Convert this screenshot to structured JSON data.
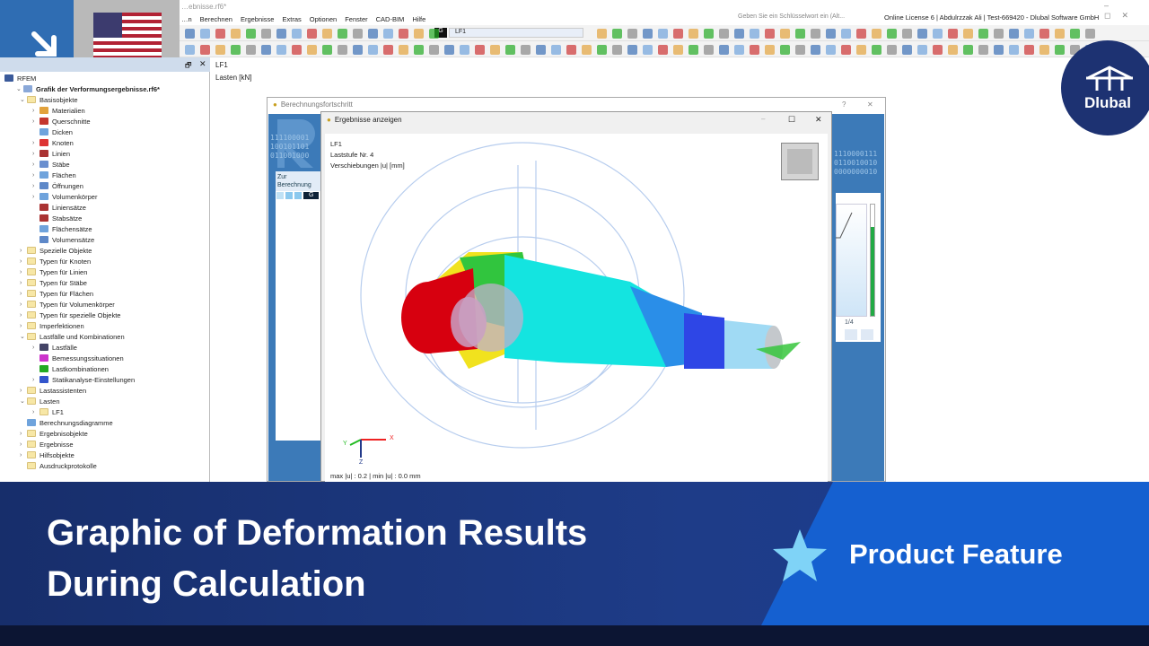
{
  "window": {
    "title": "…ebnisse.rf6*",
    "search_placeholder": "Geben Sie ein Schlüsselwort ein (Alt...",
    "license": "Online License 6 | Abdulrzzak Ali | Test-669420 - Dlubal Software GmbH"
  },
  "menu": [
    "…n",
    "Berechnen",
    "Ergebnisse",
    "Extras",
    "Optionen",
    "Fenster",
    "CAD-BIM",
    "Hilfe"
  ],
  "toolbar": {
    "loadcase_tag": "G",
    "loadcase": "LF1"
  },
  "navigator": {
    "items": [
      {
        "level": 0,
        "label": "RFEM",
        "exp": "",
        "icon": "rfem"
      },
      {
        "level": 1,
        "label": "Grafik der Verformungsergebnisse.rf6*",
        "exp": "v",
        "icon": "file",
        "bold": true
      },
      {
        "level": 2,
        "label": "Basisobjekte",
        "exp": "v",
        "icon": "folder"
      },
      {
        "level": 3,
        "label": "Materialien",
        "exp": ">",
        "icon": "#e2a23c"
      },
      {
        "level": 3,
        "label": "Querschnitte",
        "exp": ">",
        "icon": "#c4362e"
      },
      {
        "level": 3,
        "label": "Dicken",
        "exp": "",
        "icon": "#6fa3dc"
      },
      {
        "level": 3,
        "label": "Knoten",
        "exp": ">",
        "icon": "#d33"
      },
      {
        "level": 3,
        "label": "Linien",
        "exp": ">",
        "icon": "#a33"
      },
      {
        "level": 3,
        "label": "Stäbe",
        "exp": ">",
        "icon": "#6a8fcf"
      },
      {
        "level": 3,
        "label": "Flächen",
        "exp": ">",
        "icon": "#6fa3dc"
      },
      {
        "level": 3,
        "label": "Öffnungen",
        "exp": ">",
        "icon": "#5e88c8"
      },
      {
        "level": 3,
        "label": "Volumenkörper",
        "exp": ">",
        "icon": "#6fa3dc"
      },
      {
        "level": 3,
        "label": "Liniensätze",
        "exp": "",
        "icon": "#a33"
      },
      {
        "level": 3,
        "label": "Stabsätze",
        "exp": "",
        "icon": "#a33"
      },
      {
        "level": 3,
        "label": "Flächensätze",
        "exp": "",
        "icon": "#6fa3dc"
      },
      {
        "level": 3,
        "label": "Volumensätze",
        "exp": "",
        "icon": "#5e88c8"
      },
      {
        "level": 2,
        "label": "Spezielle Objekte",
        "exp": ">",
        "icon": "folder"
      },
      {
        "level": 2,
        "label": "Typen für Knoten",
        "exp": ">",
        "icon": "folder"
      },
      {
        "level": 2,
        "label": "Typen für Linien",
        "exp": ">",
        "icon": "folder"
      },
      {
        "level": 2,
        "label": "Typen für Stäbe",
        "exp": ">",
        "icon": "folder"
      },
      {
        "level": 2,
        "label": "Typen für Flächen",
        "exp": ">",
        "icon": "folder"
      },
      {
        "level": 2,
        "label": "Typen für Volumenkörper",
        "exp": ">",
        "icon": "folder"
      },
      {
        "level": 2,
        "label": "Typen für spezielle Objekte",
        "exp": ">",
        "icon": "folder"
      },
      {
        "level": 2,
        "label": "Imperfektionen",
        "exp": ">",
        "icon": "folder"
      },
      {
        "level": 2,
        "label": "Lastfälle und Kombinationen",
        "exp": "v",
        "icon": "folder"
      },
      {
        "level": 3,
        "label": "Lastfälle",
        "exp": ">",
        "icon": "#446"
      },
      {
        "level": 3,
        "label": "Bemessungssituationen",
        "exp": "",
        "icon": "#c3c"
      },
      {
        "level": 3,
        "label": "Lastkombinationen",
        "exp": "",
        "icon": "#2a2"
      },
      {
        "level": 3,
        "label": "Statikanalyse-Einstellungen",
        "exp": ">",
        "icon": "#35c"
      },
      {
        "level": 2,
        "label": "Lastassistenten",
        "exp": ">",
        "icon": "folder"
      },
      {
        "level": 2,
        "label": "Lasten",
        "exp": "v",
        "icon": "folder"
      },
      {
        "level": 3,
        "label": "LF1",
        "exp": ">",
        "icon": "folder"
      },
      {
        "level": 2,
        "label": "Berechnungsdiagramme",
        "exp": "",
        "icon": "#6fa3dc"
      },
      {
        "level": 2,
        "label": "Ergebnisobjekte",
        "exp": ">",
        "icon": "folder"
      },
      {
        "level": 2,
        "label": "Ergebnisse",
        "exp": ">",
        "icon": "folder"
      },
      {
        "level": 2,
        "label": "Hilfsobjekte",
        "exp": ">",
        "icon": "folder"
      },
      {
        "level": 2,
        "label": "Ausdruckprotokolle",
        "exp": "",
        "icon": "folder"
      }
    ]
  },
  "main": {
    "loadcase": "LF1",
    "loads_unit": "Lasten [kN]"
  },
  "progress_dialog": {
    "title": "Berechnungsfortschritt",
    "help": "?",
    "close": "✕",
    "section": "Zur Berechnung",
    "tag": "G",
    "step_label": "1/4",
    "progress_fraction": 0.8
  },
  "results_dialog": {
    "title": "Ergebnisse anzeigen",
    "minimize": "–",
    "maximize": "☐",
    "close": "✕",
    "info": [
      "LF1",
      "Laststufe Nr. 4",
      "Verschiebungen |u| [mm]"
    ],
    "axes": {
      "x": "X",
      "y": "Y",
      "z": "Z"
    },
    "summary": "max |u| : 0.2 | min |u| : 0.0 mm"
  },
  "logo": {
    "text": "Dlubal"
  },
  "banner": {
    "headline_1": "Graphic of Deformation Results",
    "headline_2": "During Calculation",
    "feature": "Product Feature"
  },
  "colors": {
    "brand": "#1d3272",
    "banner_blue": "#1560d0",
    "accent": "#2f6db3"
  }
}
